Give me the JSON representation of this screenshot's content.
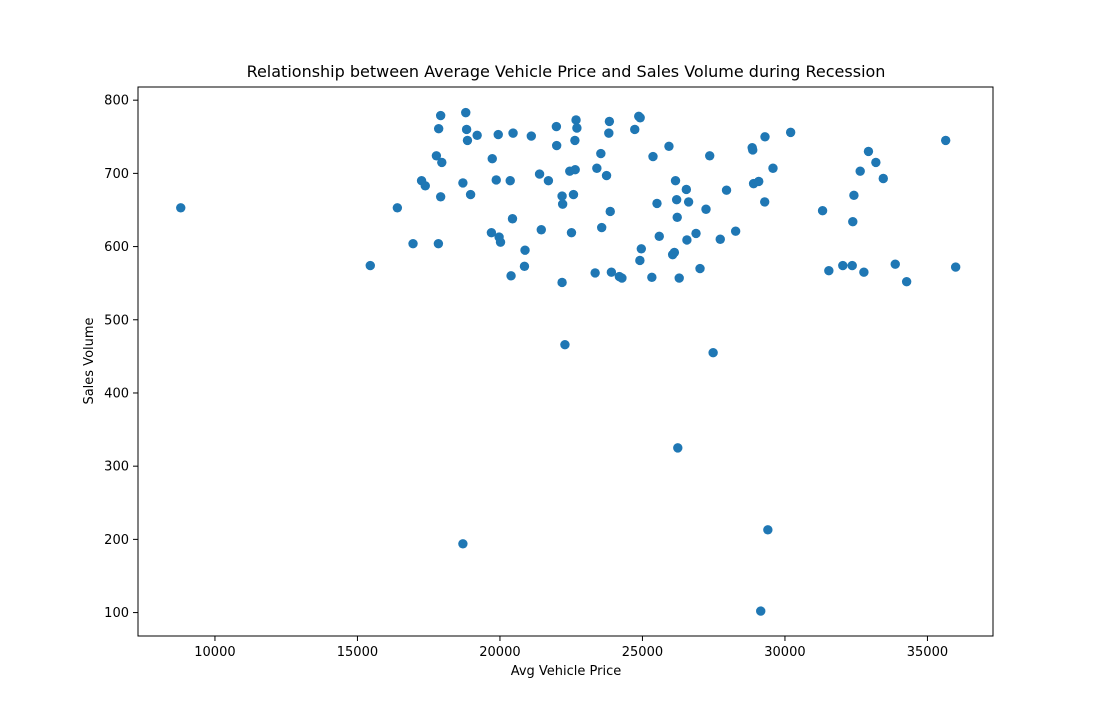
{
  "chart_data": {
    "type": "scatter",
    "title": "Relationship between Average Vehicle Price and Sales Volume during Recession",
    "xlabel": "Avg Vehicle Price",
    "ylabel": "Sales Volume",
    "xlim": [
      7300,
      37300
    ],
    "ylim": [
      68,
      818
    ],
    "xticks": [
      10000,
      15000,
      20000,
      25000,
      30000,
      35000
    ],
    "yticks": [
      100,
      200,
      300,
      400,
      500,
      600,
      700,
      800
    ],
    "grid": false,
    "marker_color": "#1f77b4",
    "points": [
      [
        8800,
        653
      ],
      [
        15450,
        574
      ],
      [
        16400,
        653
      ],
      [
        16950,
        604
      ],
      [
        17250,
        690
      ],
      [
        17380,
        683
      ],
      [
        17770,
        724
      ],
      [
        17850,
        761
      ],
      [
        17840,
        604
      ],
      [
        17920,
        779
      ],
      [
        17920,
        668
      ],
      [
        17960,
        715
      ],
      [
        18700,
        687
      ],
      [
        18800,
        783
      ],
      [
        18830,
        760
      ],
      [
        18860,
        745
      ],
      [
        18970,
        671
      ],
      [
        19200,
        752
      ],
      [
        19700,
        619
      ],
      [
        19730,
        720
      ],
      [
        19870,
        691
      ],
      [
        19940,
        753
      ],
      [
        19970,
        613
      ],
      [
        20020,
        606
      ],
      [
        20360,
        690
      ],
      [
        20390,
        560
      ],
      [
        20440,
        638
      ],
      [
        20460,
        755
      ],
      [
        20860,
        573
      ],
      [
        20880,
        595
      ],
      [
        21100,
        751
      ],
      [
        21390,
        699
      ],
      [
        21450,
        623
      ],
      [
        21700,
        690
      ],
      [
        21980,
        764
      ],
      [
        21990,
        738
      ],
      [
        22180,
        669
      ],
      [
        22200,
        658
      ],
      [
        22180,
        551
      ],
      [
        22280,
        466
      ],
      [
        22450,
        703
      ],
      [
        22510,
        619
      ],
      [
        22580,
        671
      ],
      [
        22630,
        745
      ],
      [
        22640,
        705
      ],
      [
        22670,
        773
      ],
      [
        22700,
        762
      ],
      [
        23340,
        564
      ],
      [
        23400,
        707
      ],
      [
        23540,
        727
      ],
      [
        23570,
        626
      ],
      [
        23740,
        697
      ],
      [
        23820,
        755
      ],
      [
        23840,
        771
      ],
      [
        23870,
        648
      ],
      [
        23910,
        565
      ],
      [
        24190,
        559
      ],
      [
        24280,
        557
      ],
      [
        24730,
        760
      ],
      [
        24870,
        778
      ],
      [
        24910,
        581
      ],
      [
        24920,
        776
      ],
      [
        24960,
        597
      ],
      [
        25330,
        558
      ],
      [
        25370,
        723
      ],
      [
        25510,
        659
      ],
      [
        25590,
        614
      ],
      [
        25930,
        737
      ],
      [
        26060,
        589
      ],
      [
        26120,
        592
      ],
      [
        26160,
        690
      ],
      [
        26200,
        664
      ],
      [
        26220,
        640
      ],
      [
        26240,
        325
      ],
      [
        26290,
        557
      ],
      [
        26540,
        678
      ],
      [
        26560,
        609
      ],
      [
        26620,
        661
      ],
      [
        26880,
        618
      ],
      [
        27020,
        570
      ],
      [
        27230,
        651
      ],
      [
        27360,
        724
      ],
      [
        27480,
        455
      ],
      [
        27730,
        610
      ],
      [
        27950,
        677
      ],
      [
        28270,
        621
      ],
      [
        28850,
        735
      ],
      [
        28870,
        732
      ],
      [
        28900,
        686
      ],
      [
        29080,
        689
      ],
      [
        29150,
        102
      ],
      [
        29290,
        661
      ],
      [
        29300,
        750
      ],
      [
        29400,
        213
      ],
      [
        29580,
        707
      ],
      [
        30200,
        756
      ],
      [
        31320,
        649
      ],
      [
        31540,
        567
      ],
      [
        32030,
        574
      ],
      [
        32360,
        574
      ],
      [
        32380,
        634
      ],
      [
        32420,
        670
      ],
      [
        32640,
        703
      ],
      [
        32770,
        565
      ],
      [
        32930,
        730
      ],
      [
        33190,
        715
      ],
      [
        33450,
        693
      ],
      [
        33870,
        576
      ],
      [
        34270,
        552
      ],
      [
        35640,
        745
      ],
      [
        35990,
        572
      ],
      [
        18700,
        194
      ]
    ]
  }
}
